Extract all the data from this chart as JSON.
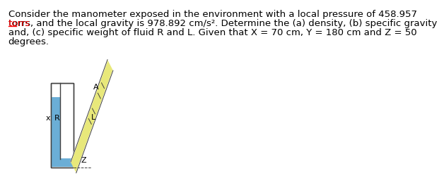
{
  "bg_color": "#ffffff",
  "text_color": "#000000",
  "text_line1": "Consider the manometer exposed in the environment with a local pressure of 458.957",
  "text_line2": "torrs, and the local gravity is 978.892 cm/s². Determine the (a) density, (b) specific gravity",
  "text_line3": "and, (c) specific weight of fluid R and L. Given that X = 70 cm, Y = 180 cm and Z = 50",
  "text_line4": "degrees.",
  "torrs_underline_word": "torrs",
  "blue_color": "#6baed6",
  "yellow_color": "#e8e87a",
  "gray_outline": "#a0a0a0",
  "dark_outline": "#404040",
  "label_x": "x",
  "label_R": "R",
  "label_A": "A",
  "label_L": "L",
  "label_Z": "Z",
  "font_size_text": 9.5,
  "font_size_label": 8
}
